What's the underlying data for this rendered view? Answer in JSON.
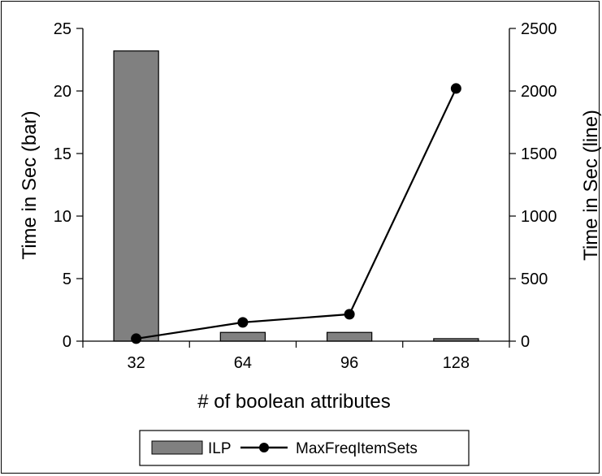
{
  "chart_data": {
    "type": "bar",
    "xlabel": "# of boolean attributes",
    "ylabel_left": "Time in Sec (bar)",
    "ylabel_right": "Time in Sec (line)",
    "categories": [
      "32",
      "64",
      "96",
      "128"
    ],
    "ylim_left": [
      0,
      25
    ],
    "ylim_right": [
      0,
      2500
    ],
    "yticks_left": [
      "0",
      "5",
      "10",
      "15",
      "20",
      "25"
    ],
    "yticks_right": [
      "0",
      "500",
      "1000",
      "1500",
      "2000",
      "2500"
    ],
    "grid": false,
    "legend_position": "bottom",
    "series": [
      {
        "name": "ILP",
        "type": "bar",
        "axis": "left",
        "values": [
          23.2,
          0.7,
          0.7,
          0.2
        ],
        "color": "#808080"
      },
      {
        "name": "MaxFreqItemSets",
        "type": "line",
        "axis": "right",
        "values": [
          20,
          150,
          215,
          2020
        ],
        "color": "#000000"
      }
    ]
  }
}
